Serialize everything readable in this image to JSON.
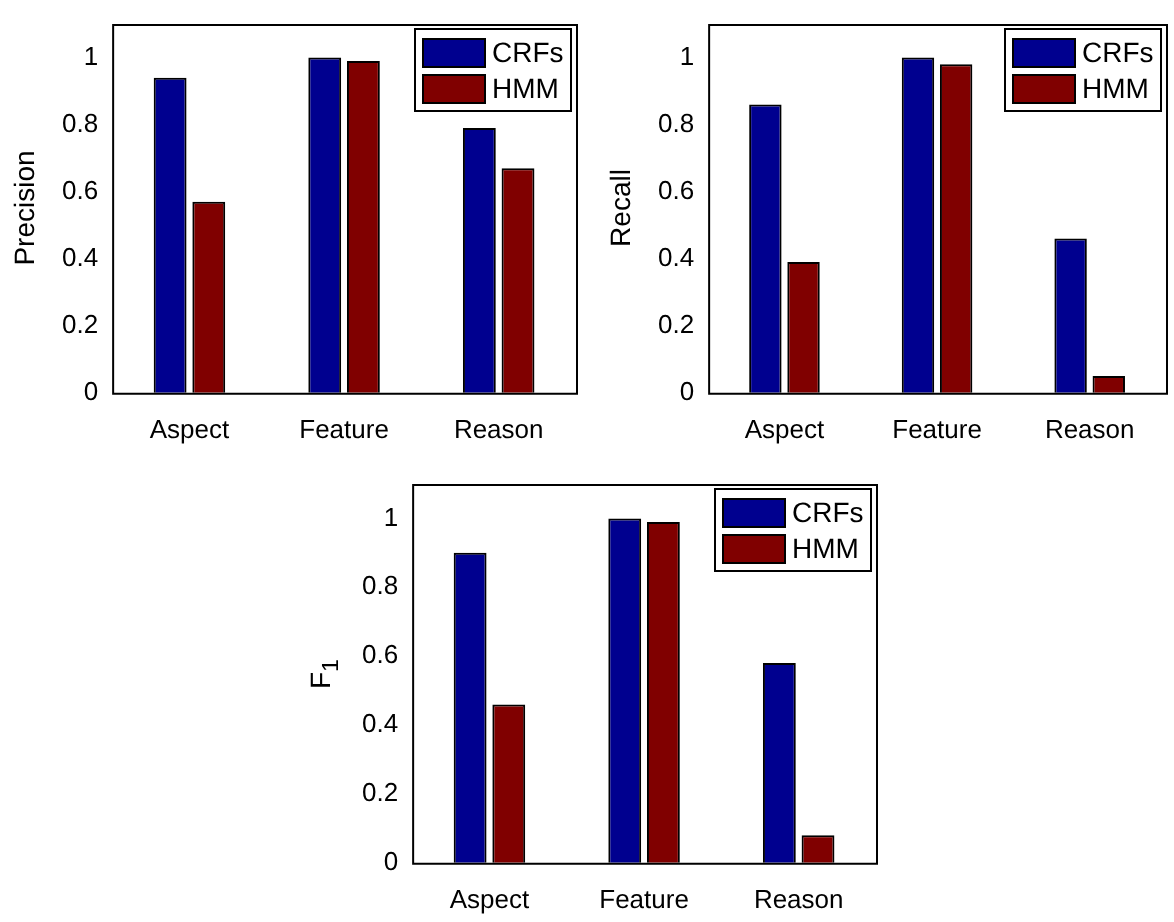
{
  "chart_data": [
    {
      "type": "bar",
      "ylabel": "Precision",
      "categories": [
        "Aspect",
        "Feature",
        "Reason"
      ],
      "ylim": [
        0,
        1.1
      ],
      "yticks": [
        0,
        0.2,
        0.4,
        0.6,
        0.8,
        1
      ],
      "legend": "top right",
      "series": [
        {
          "name": "CRFs",
          "color": "#00008f",
          "values": [
            0.94,
            1.0,
            0.79
          ]
        },
        {
          "name": "HMM",
          "color": "#800000",
          "values": [
            0.57,
            0.99,
            0.67
          ]
        }
      ]
    },
    {
      "type": "bar",
      "ylabel": "Recall",
      "categories": [
        "Aspect",
        "Feature",
        "Reason"
      ],
      "ylim": [
        0,
        1.1
      ],
      "yticks": [
        0,
        0.2,
        0.4,
        0.6,
        0.8,
        1
      ],
      "legend": "top right",
      "series": [
        {
          "name": "CRFs",
          "color": "#00008f",
          "values": [
            0.86,
            1.0,
            0.46
          ]
        },
        {
          "name": "HMM",
          "color": "#800000",
          "values": [
            0.39,
            0.98,
            0.05
          ]
        }
      ]
    },
    {
      "type": "bar",
      "ylabel": "F$_{1}$",
      "categories": [
        "Aspect",
        "Feature",
        "Reason"
      ],
      "ylim": [
        0,
        1.1
      ],
      "yticks": [
        0,
        0.2,
        0.4,
        0.6,
        0.8,
        1
      ],
      "legend": "top right",
      "series": [
        {
          "name": "CRFs",
          "color": "#00008f",
          "values": [
            0.9,
            1.0,
            0.58
          ]
        },
        {
          "name": "HMM",
          "color": "#800000",
          "values": [
            0.46,
            0.99,
            0.08
          ]
        }
      ]
    }
  ]
}
